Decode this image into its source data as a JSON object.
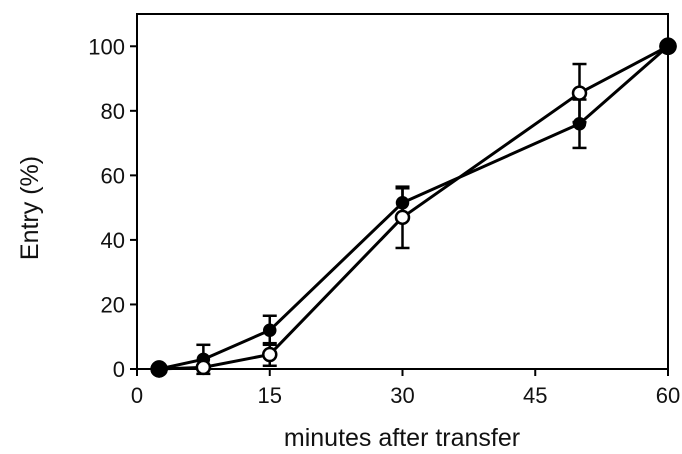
{
  "chart_data": {
    "type": "line",
    "xlabel": "minutes after transfer",
    "ylabel": "Entry (%)",
    "xlim": [
      0,
      60
    ],
    "ylim": [
      0,
      110
    ],
    "xticks": [
      0,
      15,
      30,
      45,
      60
    ],
    "yticks": [
      0,
      20,
      40,
      60,
      80,
      100
    ],
    "grid": false,
    "series": [
      {
        "marker": "filled-circle",
        "points": [
          {
            "x": 2.5,
            "y": 0,
            "err": 0
          },
          {
            "x": 7.5,
            "y": 3,
            "err": 4.5
          },
          {
            "x": 15,
            "y": 12,
            "err": 4.5
          },
          {
            "x": 30,
            "y": 51.5,
            "err": 4.5
          },
          {
            "x": 50,
            "y": 76,
            "err": 7.5
          },
          {
            "x": 60,
            "y": 100,
            "err": 0
          }
        ]
      },
      {
        "marker": "open-circle",
        "points": [
          {
            "x": 2.5,
            "y": 0,
            "err": 0
          },
          {
            "x": 7.5,
            "y": 0.5,
            "err": 0
          },
          {
            "x": 15,
            "y": 4.5,
            "err": 3.5
          },
          {
            "x": 30,
            "y": 47,
            "err": 9.5
          },
          {
            "x": 50,
            "y": 85.5,
            "err": 9
          },
          {
            "x": 60,
            "y": 100,
            "err": 0
          }
        ]
      }
    ]
  }
}
